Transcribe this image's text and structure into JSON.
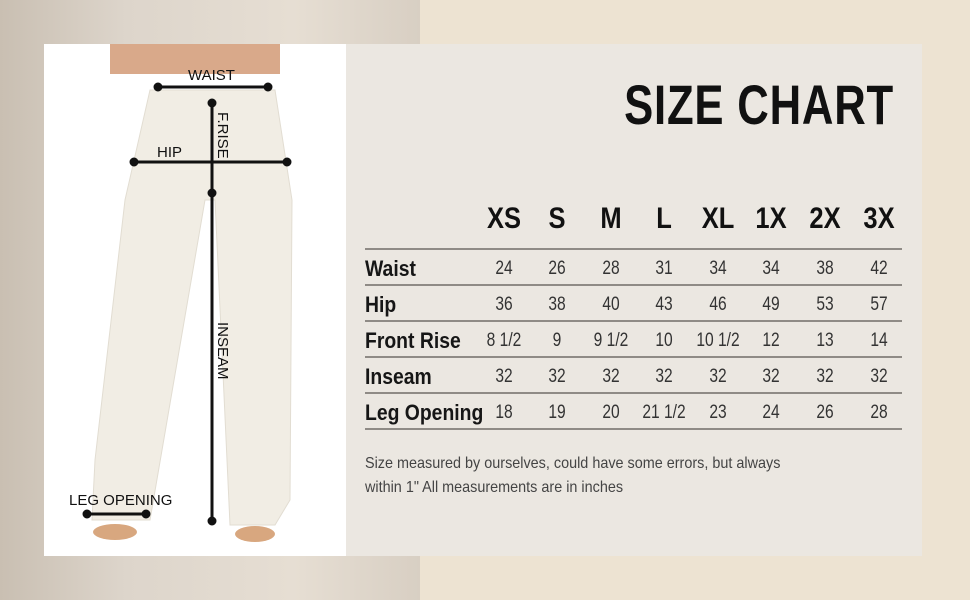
{
  "title": "SIZE CHART",
  "diagram_labels": {
    "waist": "WAIST",
    "frise": "F.RISE",
    "hip": "HIP",
    "inseam": "INSEAM",
    "leg_opening": "LEG OPENING"
  },
  "sizes": [
    "XS",
    "S",
    "M",
    "L",
    "XL",
    "1X",
    "2X",
    "3X"
  ],
  "rows": [
    {
      "label": "Waist",
      "values": [
        "24",
        "26",
        "28",
        "31",
        "34",
        "34",
        "38",
        "42"
      ]
    },
    {
      "label": "Hip",
      "values": [
        "36",
        "38",
        "40",
        "43",
        "46",
        "49",
        "53",
        "57"
      ]
    },
    {
      "label": "Front Rise",
      "values": [
        "8 1/2",
        "9",
        "9 1/2",
        "10",
        "10 1/2",
        "12",
        "13",
        "14"
      ]
    },
    {
      "label": "Inseam",
      "values": [
        "32",
        "32",
        "32",
        "32",
        "32",
        "32",
        "32",
        "32"
      ]
    },
    {
      "label": "Leg Opening",
      "values": [
        "18",
        "19",
        "20",
        "21 1/2",
        "23",
        "24",
        "26",
        "28"
      ]
    }
  ],
  "note_line1": "Size measured by ourselves, could have some errors, but always",
  "note_line2": "within 1\" All measurements are in inches",
  "colors": {
    "panel": "#ebe7e1",
    "background": "#ede3d2",
    "text": "#111111"
  }
}
